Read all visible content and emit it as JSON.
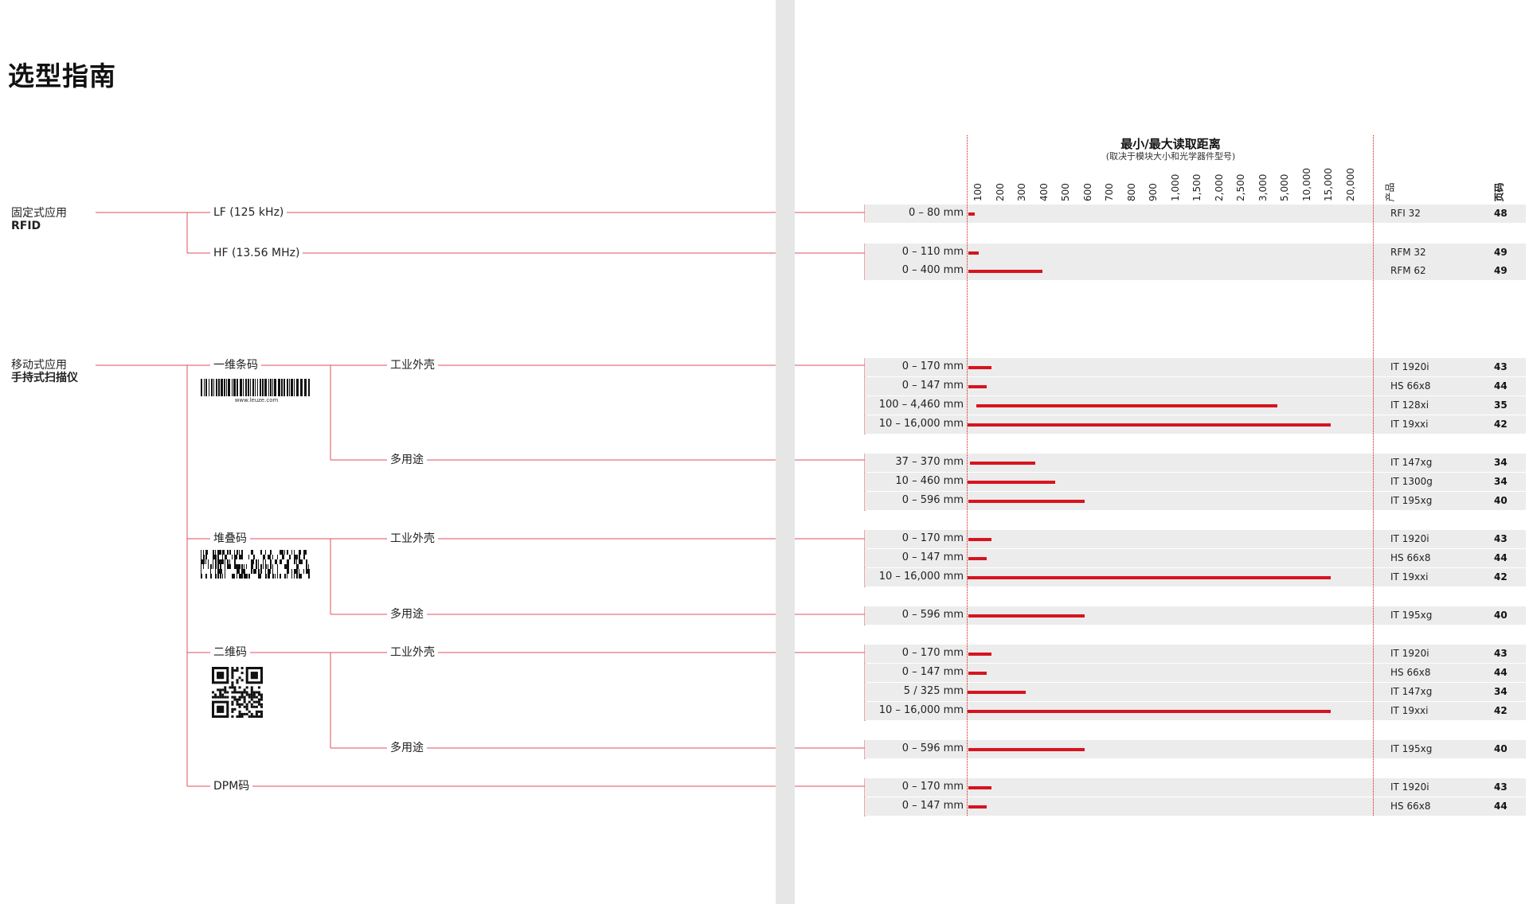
{
  "page": {
    "title": "选型指南"
  },
  "categories": {
    "rfid": {
      "line1": "固定式应用",
      "line2": "RFID"
    },
    "mobile": {
      "line1": "移动式应用",
      "line2": "手持式扫描仪"
    }
  },
  "tree": {
    "lf": "LF (125 kHz)",
    "hf": "HF (13.56 MHz)",
    "barcode_1d": "一维条码",
    "barcode_url": "www.leuze.com",
    "stacked": "堆叠码",
    "code_2d": "二维码",
    "dpm": "DPM码",
    "industrial": "工业外壳",
    "multipurpose": "多用途"
  },
  "table_header": {
    "title": "最小/最大读取距离",
    "subtitle": "(取决于模块大小和光学器件型号)",
    "ticks": [
      "100",
      "200",
      "300",
      "400",
      "500",
      "600",
      "700",
      "800",
      "900",
      "1,000",
      "1,500",
      "2,000",
      "2,500",
      "3,000",
      "5,000",
      "10,000",
      "15,000",
      "20,000"
    ],
    "product_label": "产品",
    "page_label": "页码"
  },
  "rows": [
    {
      "range": "0 – 80 mm",
      "bar_from_mm": 0,
      "bar_to_mm": 80,
      "product": "RFI 32",
      "page": "48"
    },
    {
      "range": "0 – 110 mm",
      "bar_from_mm": 0,
      "bar_to_mm": 110,
      "product": "RFM 32",
      "page": "49"
    },
    {
      "range": "0 – 400 mm",
      "bar_from_mm": 0,
      "bar_to_mm": 400,
      "product": "RFM 62",
      "page": "49"
    },
    {
      "range": "0 – 170 mm",
      "bar_from_mm": 0,
      "bar_to_mm": 170,
      "product": "IT 1920i",
      "page": "43"
    },
    {
      "range": "0 – 147 mm",
      "bar_from_mm": 0,
      "bar_to_mm": 147,
      "product": "HS 66x8",
      "page": "44"
    },
    {
      "range": "100 – 4,460 mm",
      "bar_from_mm": 100,
      "bar_to_mm": 4460,
      "product": "IT 128xi",
      "page": "35"
    },
    {
      "range": "10 – 16,000 mm",
      "bar_from_mm": 10,
      "bar_to_mm": 16000,
      "product": "IT 19xxi",
      "page": "42"
    },
    {
      "range": "37 – 370 mm",
      "bar_from_mm": 37,
      "bar_to_mm": 370,
      "product": "IT 147xg",
      "page": "34"
    },
    {
      "range": "10 – 460 mm",
      "bar_from_mm": 10,
      "bar_to_mm": 460,
      "product": "IT 1300g",
      "page": "34"
    },
    {
      "range": "0 – 596 mm",
      "bar_from_mm": 0,
      "bar_to_mm": 596,
      "product": "IT 195xg",
      "page": "40"
    },
    {
      "range": "0 – 170 mm",
      "bar_from_mm": 0,
      "bar_to_mm": 170,
      "product": "IT 1920i",
      "page": "43"
    },
    {
      "range": "0 – 147 mm",
      "bar_from_mm": 0,
      "bar_to_mm": 147,
      "product": "HS 66x8",
      "page": "44"
    },
    {
      "range": "10 – 16,000 mm",
      "bar_from_mm": 10,
      "bar_to_mm": 16000,
      "product": "IT 19xxi",
      "page": "42"
    },
    {
      "range": "0 – 596 mm",
      "bar_from_mm": 0,
      "bar_to_mm": 596,
      "product": "IT 195xg",
      "page": "40"
    },
    {
      "range": "0 – 170 mm",
      "bar_from_mm": 0,
      "bar_to_mm": 170,
      "product": "IT 1920i",
      "page": "43"
    },
    {
      "range": "0 – 147 mm",
      "bar_from_mm": 0,
      "bar_to_mm": 147,
      "product": "HS 66x8",
      "page": "44"
    },
    {
      "range": "5 / 325 mm",
      "bar_from_mm": 5,
      "bar_to_mm": 325,
      "product": "IT 147xg",
      "page": "34"
    },
    {
      "range": "10 – 16,000 mm",
      "bar_from_mm": 10,
      "bar_to_mm": 16000,
      "product": "IT 19xxi",
      "page": "42"
    },
    {
      "range": "0 – 596 mm",
      "bar_from_mm": 0,
      "bar_to_mm": 596,
      "product": "IT 195xg",
      "page": "40"
    },
    {
      "range": "0 – 170 mm",
      "bar_from_mm": 0,
      "bar_to_mm": 170,
      "product": "IT 1920i",
      "page": "43"
    },
    {
      "range": "0 – 147 mm",
      "bar_from_mm": 0,
      "bar_to_mm": 147,
      "product": "HS 66x8",
      "page": "44"
    }
  ],
  "colors": {
    "accent": "#d6141f",
    "row_bg": "#ececec",
    "gutter": "#e6e6e6"
  }
}
